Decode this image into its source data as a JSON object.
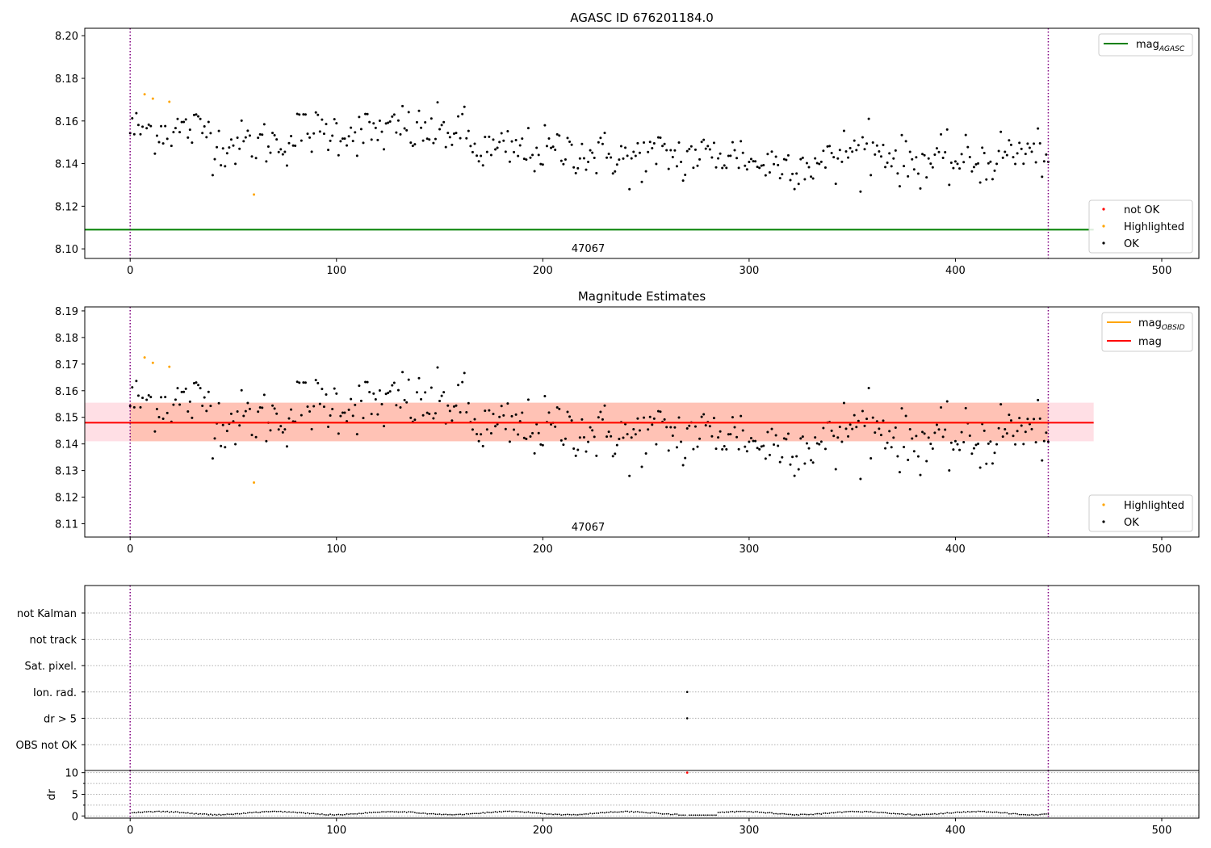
{
  "chart_data": [
    {
      "type": "scatter",
      "title": "AGASC ID 676201184.0",
      "xlim": [
        -22,
        518
      ],
      "ylim": [
        8.0955,
        8.2035
      ],
      "x_ticks": [
        0,
        100,
        200,
        300,
        400,
        500
      ],
      "y_ticks": [
        8.1,
        8.12,
        8.14,
        8.16,
        8.18,
        8.2
      ],
      "y_tick_labels": [
        "8.10",
        "8.12",
        "8.14",
        "8.16",
        "8.18",
        "8.20"
      ],
      "obsid_label": "47067",
      "obsid_label_x": 222,
      "obsid_boundaries": [
        0,
        445
      ],
      "mag_agasc": 8.109,
      "mag_agasc_xmax": 467,
      "legend_top": [
        {
          "label": "mag",
          "subscript": "AGASC",
          "color": "#008000"
        }
      ],
      "legend_bottom": [
        {
          "label": "not OK",
          "color": "#ff0000"
        },
        {
          "label": "Highlighted",
          "color": "#ffa500"
        },
        {
          "label": "OK",
          "color": "#000000"
        }
      ],
      "highlighted_points": [
        [
          7,
          8.1725
        ],
        [
          11,
          8.1705
        ],
        [
          19,
          8.169
        ],
        [
          60,
          8.1255
        ]
      ]
    },
    {
      "type": "scatter",
      "title": "Magnitude Estimates",
      "xlim": [
        -22,
        518
      ],
      "ylim": [
        8.105,
        8.1915
      ],
      "x_ticks": [
        0,
        100,
        200,
        300,
        400,
        500
      ],
      "y_ticks": [
        8.11,
        8.12,
        8.13,
        8.14,
        8.15,
        8.16,
        8.17,
        8.18,
        8.19
      ],
      "y_tick_labels": [
        "8.11",
        "8.12",
        "8.13",
        "8.14",
        "8.15",
        "8.16",
        "8.17",
        "8.18",
        "8.19"
      ],
      "obsid_label": "47067",
      "obsid_label_x": 222,
      "obsid_boundaries": [
        0,
        445
      ],
      "mag_obsid": {
        "value": 8.148,
        "band": [
          8.141,
          8.1555
        ],
        "xmin": 0,
        "xmax": 445
      },
      "mag": {
        "value": 8.148,
        "band": [
          8.141,
          8.1555
        ],
        "xmin": -22,
        "xmax": 467
      },
      "legend_top": [
        {
          "label": "mag",
          "subscript": "OBSID",
          "color": "#ffa500"
        },
        {
          "label": "mag",
          "subscript": "",
          "color": "#ff0000"
        }
      ],
      "legend_bottom": [
        {
          "label": "Highlighted",
          "color": "#ffa500"
        },
        {
          "label": "OK",
          "color": "#000000"
        }
      ],
      "highlighted_points": [
        [
          7,
          8.1725
        ],
        [
          11,
          8.1705
        ],
        [
          19,
          8.169
        ],
        [
          60,
          8.1255
        ]
      ]
    },
    {
      "type": "scatter",
      "title": "",
      "xlim": [
        -22,
        518
      ],
      "x_ticks": [
        0,
        100,
        200,
        300,
        400,
        500
      ],
      "flag_rows": [
        "not Kalman",
        "not track",
        "Sat. pixel.",
        "Ion. rad.",
        "dr > 5",
        "OBS not OK"
      ],
      "flag_points": [
        {
          "row": "Ion. rad.",
          "x": 270
        },
        {
          "row": "dr > 5",
          "x": 270
        }
      ],
      "obsid_boundaries": [
        0,
        445
      ]
    },
    {
      "type": "line",
      "title": "",
      "ylabel": "dr",
      "xlim": [
        -22,
        518
      ],
      "ylim": [
        -0.5,
        10.5
      ],
      "y_ticks": [
        0,
        5,
        10
      ],
      "y_tick_labels": [
        "0",
        "5",
        "10"
      ],
      "x_ticks": [
        0,
        100,
        200,
        300,
        400,
        500
      ],
      "outlier_point": [
        270,
        10
      ],
      "obsid_boundaries": [
        0,
        445
      ]
    }
  ],
  "colors": {
    "ok": "#000000",
    "highlighted": "#ffa500",
    "not_ok": "#ff0000",
    "agasc_line": "#008000",
    "mag_line": "#ff0000",
    "mag_obsid_line": "#ffa500",
    "obsid_boundary": "#800080",
    "band_mag": "#ffc0cb",
    "band_obsid": "#ffa07a"
  }
}
